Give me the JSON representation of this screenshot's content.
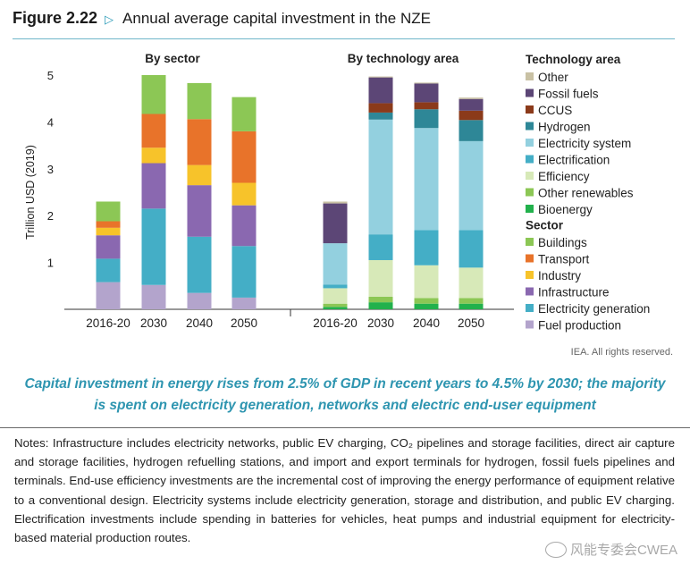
{
  "figure": {
    "number": "Figure 2.22",
    "arrow": "▷",
    "title": "Annual average capital investment in the NZE"
  },
  "chart_data": [
    {
      "type": "bar",
      "stacked": true,
      "title": "By sector",
      "ylabel": "Trillion USD (2019)",
      "ylim": [
        0,
        5
      ],
      "yticks": [
        1,
        2,
        3,
        4,
        5
      ],
      "categories": [
        "2016-20",
        "2030",
        "2040",
        "2050"
      ],
      "series": [
        {
          "name": "Fuel production",
          "color": "#b3a4cc",
          "values": [
            0.58,
            0.52,
            0.35,
            0.25
          ]
        },
        {
          "name": "Electricity generation",
          "color": "#44aec6",
          "values": [
            0.5,
            1.63,
            1.2,
            1.1
          ]
        },
        {
          "name": "Infrastructure",
          "color": "#8a68b0",
          "values": [
            0.5,
            0.97,
            1.1,
            0.87
          ]
        },
        {
          "name": "Industry",
          "color": "#f7c32a",
          "values": [
            0.16,
            0.33,
            0.43,
            0.48
          ]
        },
        {
          "name": "Transport",
          "color": "#e8732a",
          "values": [
            0.14,
            0.72,
            0.98,
            1.1
          ]
        },
        {
          "name": "Buildings",
          "color": "#8cc755",
          "values": [
            0.42,
            0.83,
            0.77,
            0.73
          ]
        }
      ]
    },
    {
      "type": "bar",
      "stacked": true,
      "title": "By technology area",
      "ylim": [
        0,
        5
      ],
      "categories": [
        "2016-20",
        "2030",
        "2040",
        "2050"
      ],
      "series": [
        {
          "name": "Bioenergy",
          "color": "#22b14c",
          "values": [
            0.05,
            0.15,
            0.12,
            0.12
          ]
        },
        {
          "name": "Other renewables",
          "color": "#8cc755",
          "values": [
            0.07,
            0.12,
            0.12,
            0.12
          ]
        },
        {
          "name": "Efficiency",
          "color": "#d7e9b8",
          "values": [
            0.33,
            0.78,
            0.7,
            0.65
          ]
        },
        {
          "name": "Electrification",
          "color": "#44aec6",
          "values": [
            0.08,
            0.55,
            0.75,
            0.8
          ]
        },
        {
          "name": "Electricity system",
          "color": "#93d0df",
          "values": [
            0.88,
            2.45,
            2.18,
            1.9
          ]
        },
        {
          "name": "Hydrogen",
          "color": "#2e8797",
          "values": [
            0.0,
            0.15,
            0.4,
            0.45
          ]
        },
        {
          "name": "CCUS",
          "color": "#8b3a1a",
          "values": [
            0.0,
            0.2,
            0.15,
            0.2
          ]
        },
        {
          "name": "Fossil fuels",
          "color": "#5c4676",
          "values": [
            0.85,
            0.55,
            0.4,
            0.25
          ]
        },
        {
          "name": "Other",
          "color": "#c9c1a4",
          "values": [
            0.04,
            0.02,
            0.02,
            0.03
          ]
        }
      ]
    }
  ],
  "legend": {
    "tech_heading": "Technology area",
    "tech_items": [
      {
        "label": "Other",
        "color": "#c9c1a4"
      },
      {
        "label": "Fossil fuels",
        "color": "#5c4676"
      },
      {
        "label": "CCUS",
        "color": "#8b3a1a"
      },
      {
        "label": "Hydrogen",
        "color": "#2e8797"
      },
      {
        "label": "Electricity system",
        "color": "#93d0df"
      },
      {
        "label": "Electrification",
        "color": "#44aec6"
      },
      {
        "label": "Efficiency",
        "color": "#d7e9b8"
      },
      {
        "label": "Other renewables",
        "color": "#8cc755"
      },
      {
        "label": "Bioenergy",
        "color": "#22b14c"
      }
    ],
    "sector_heading": "Sector",
    "sector_items": [
      {
        "label": "Buildings",
        "color": "#8cc755"
      },
      {
        "label": "Transport",
        "color": "#e8732a"
      },
      {
        "label": "Industry",
        "color": "#f7c32a"
      },
      {
        "label": "Infrastructure",
        "color": "#8a68b0"
      },
      {
        "label": "Electricity generation",
        "color": "#44aec6"
      },
      {
        "label": "Fuel production",
        "color": "#b3a4cc"
      }
    ]
  },
  "credit": "IEA. All rights reserved.",
  "caption": "Capital investment in energy rises from 2.5% of GDP in recent years to 4.5% by 2030; the majority is spent on electricity generation, networks and electric end-user equipment",
  "notes": "Notes: Infrastructure includes electricity networks, public EV charging, CO₂ pipelines and storage facilities, direct air capture and storage facilities, hydrogen refuelling stations, and import and export terminals for hydrogen, fossil fuels pipelines and terminals. End-use efficiency investments are the incremental cost of improving the energy performance of equipment relative to a conventional design. Electricity systems include electricity generation, storage and distribution, and public EV charging. Electrification investments include spending in batteries for vehicles, heat pumps and industrial equipment for electricity-based material production routes.",
  "watermark": "风能专委会CWEA"
}
